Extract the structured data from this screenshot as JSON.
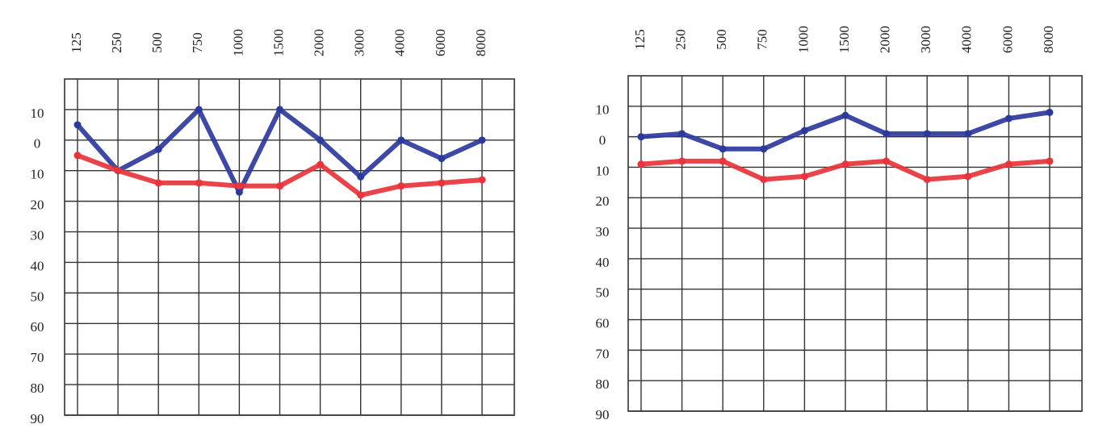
{
  "chart_data": [
    {
      "type": "line",
      "categories": [
        "125",
        "250",
        "500",
        "750",
        "1000",
        "1500",
        "2000",
        "3000",
        "4000",
        "6000",
        "8000"
      ],
      "series": [
        {
          "color": "#2c3a9c",
          "values": [
            -5,
            10,
            3,
            -10,
            17,
            -10,
            0,
            12,
            0,
            6,
            0
          ]
        },
        {
          "color": "#e8343c",
          "values": [
            5,
            10,
            14,
            14,
            15,
            15,
            8,
            18,
            15,
            14,
            13
          ]
        }
      ],
      "ylim": [
        -20,
        90
      ],
      "yticks": [
        {
          "value": -10,
          "label": "10"
        },
        0,
        10,
        20,
        30,
        40,
        50,
        60,
        70,
        80,
        90
      ],
      "invert_y": true,
      "grid": true
    },
    {
      "type": "line",
      "categories": [
        "125",
        "250",
        "500",
        "750",
        "1000",
        "1500",
        "2000",
        "3000",
        "4000",
        "6000",
        "8000"
      ],
      "series": [
        {
          "color": "#2c3a9c",
          "values": [
            0,
            -1,
            4,
            4,
            -2,
            -7,
            -1,
            -1,
            -1,
            -6,
            -8
          ]
        },
        {
          "color": "#e8343c",
          "values": [
            9,
            8,
            8,
            14,
            13,
            9,
            8,
            14,
            13,
            9,
            8
          ]
        }
      ],
      "ylim": [
        -20,
        90
      ],
      "yticks": [
        {
          "value": -10,
          "label": "10"
        },
        0,
        10,
        20,
        30,
        40,
        50,
        60,
        70,
        80,
        90
      ],
      "invert_y": true,
      "grid": true
    }
  ]
}
